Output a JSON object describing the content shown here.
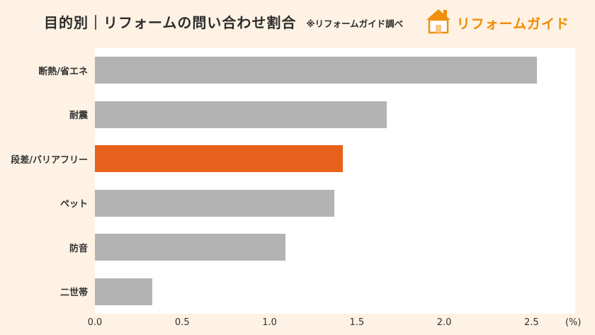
{
  "header": {
    "title": "目的別｜リフォームの問い合わせ割合",
    "note": "※リフォームガイド調べ",
    "logo_text": "リフォームガイド"
  },
  "chart_data": {
    "type": "bar",
    "orientation": "horizontal",
    "title": "目的別｜リフォームの問い合わせ割合",
    "categories": [
      "断熱/省エネ",
      "耐震",
      "段差/バリアフリー",
      "ペット",
      "防音",
      "二世帯"
    ],
    "values": [
      2.53,
      1.67,
      1.42,
      1.37,
      1.09,
      0.33
    ],
    "highlight_index": 2,
    "highlight_category": "段差/バリアフリー",
    "x_ticks": [
      "0.0",
      "0.5",
      "1.0",
      "1.5",
      "2.0",
      "2.5"
    ],
    "xlim": [
      0,
      2.75
    ],
    "xlabel": "(%)",
    "grid": "off",
    "legend": "none",
    "colors": {
      "bar": "#b3b3b3",
      "highlight": "#e8611c",
      "plot_background": "#ffffff",
      "page_background": "#fdf2e3",
      "logo_orange": "#f08a00",
      "text": "#2d2d2d"
    }
  }
}
